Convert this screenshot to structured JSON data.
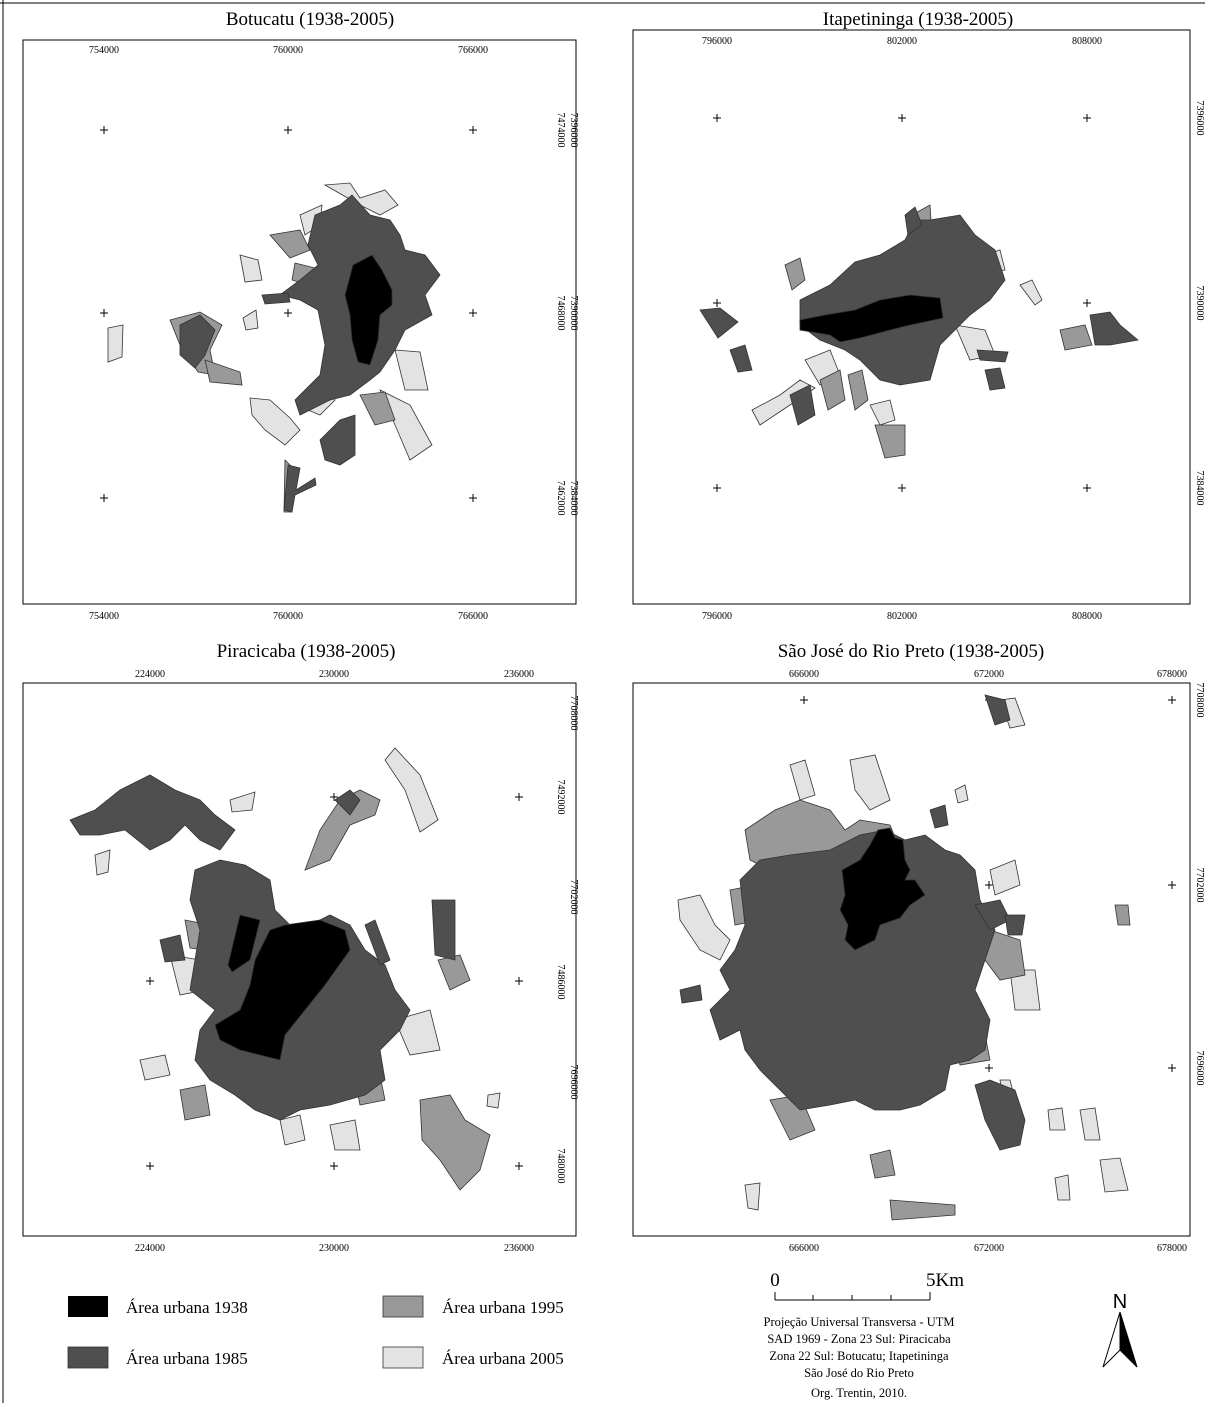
{
  "colors": {
    "urban_1938": "#000000",
    "urban_1985": "#4f4f4f",
    "urban_1995": "#999999",
    "urban_2005": "#e3e3e3",
    "frame": "#000000",
    "background": "#ffffff"
  },
  "maps": [
    {
      "id": "botucatu",
      "title": "Botucatu (1938-2005)",
      "x_ticks": [
        "754000",
        "760000",
        "766000"
      ],
      "y_ticks": [
        "7396000",
        "7390000",
        "7384000"
      ],
      "y_ticks_alt": [
        "7474000",
        "7468000",
        "7462000"
      ]
    },
    {
      "id": "itapetininga",
      "title": "Itapetininga (1938-2005)",
      "x_ticks": [
        "796000",
        "802000",
        "808000"
      ],
      "y_ticks": [
        "7396000",
        "7390000",
        "7384000"
      ]
    },
    {
      "id": "piracicaba",
      "title": "Piracicaba (1938-2005)",
      "x_ticks": [
        "224000",
        "230000",
        "236000"
      ],
      "y_ticks": [
        "7708000",
        "7702000",
        "7696000"
      ],
      "y_ticks_alt": [
        "7492000",
        "7486000",
        "7480000"
      ]
    },
    {
      "id": "sjrp",
      "title": "São José do Rio Preto (1938-2005)",
      "x_ticks": [
        "666000",
        "672000",
        "678000"
      ],
      "y_ticks": [
        "7708000",
        "7702000",
        "7696000"
      ]
    }
  ],
  "legend": [
    {
      "label": "Área urbana 1938",
      "color_key": "urban_1938"
    },
    {
      "label": "Área urbana 1985",
      "color_key": "urban_1985"
    },
    {
      "label": "Área urbana 1995",
      "color_key": "urban_1995"
    },
    {
      "label": "Área urbana 2005",
      "color_key": "urban_2005"
    }
  ],
  "scale_bar": {
    "start": "0",
    "end": "5Km"
  },
  "north_arrow": {
    "label": "N"
  },
  "projection_lines": [
    "Projeção Universal Transversa - UTM",
    "SAD 1969 - Zona 23 Sul: Piracicaba",
    "Zona 22 Sul: Botucatu; Itapetininga",
    "São José do Rio Preto"
  ],
  "credit": "Org. Trentin, 2010."
}
